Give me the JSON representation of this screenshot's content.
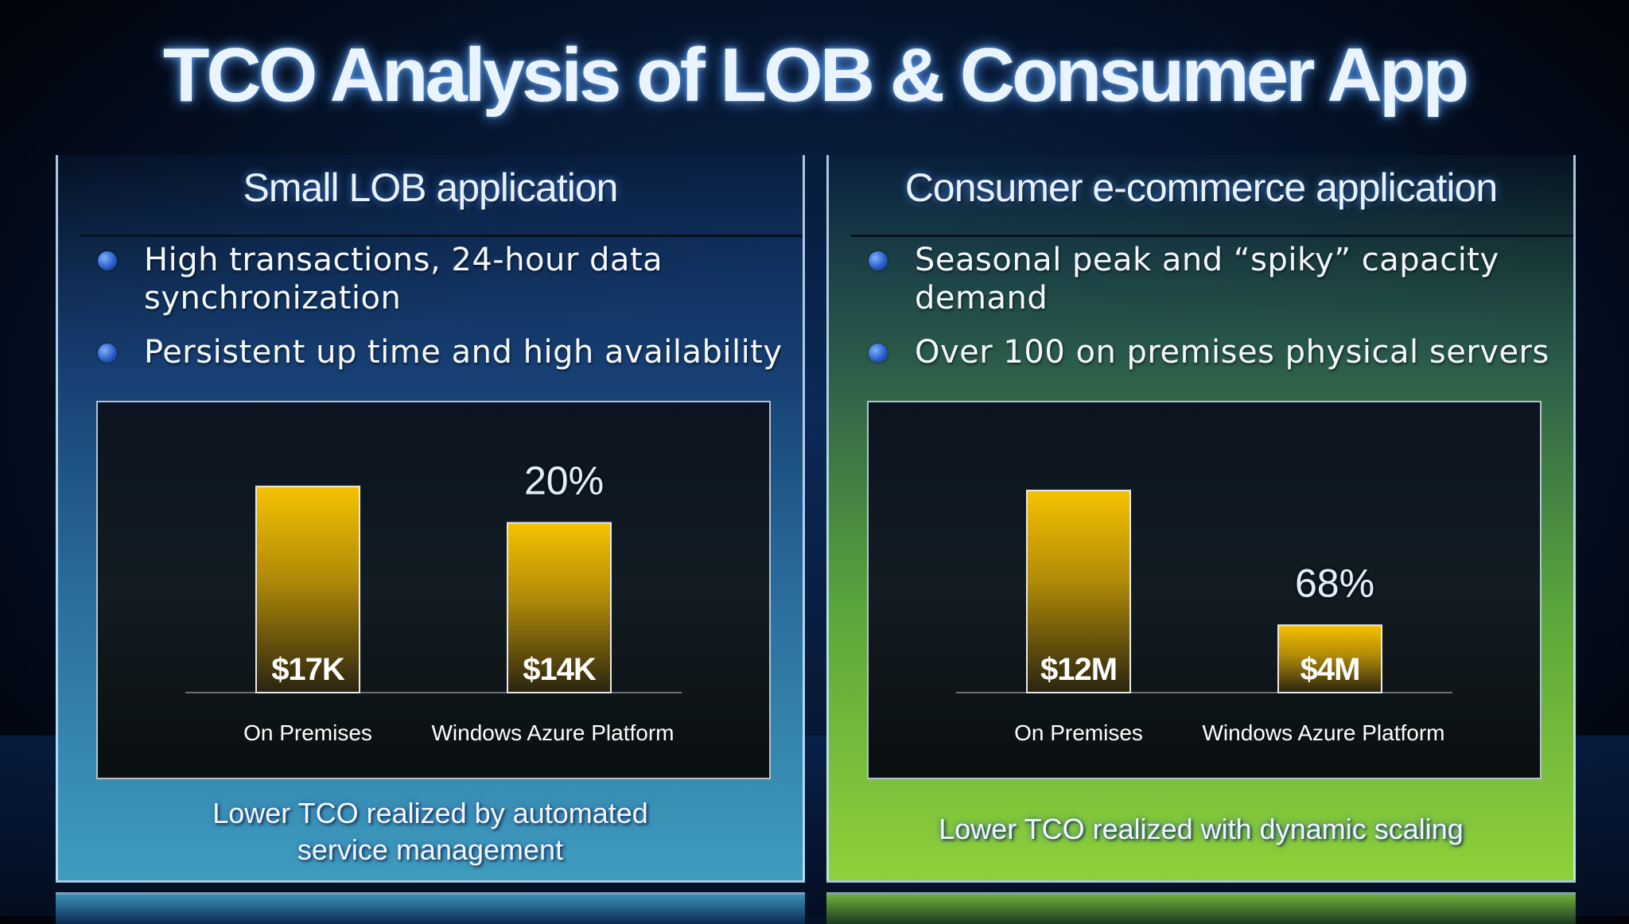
{
  "title": "TCO Analysis of LOB & Consumer App",
  "panels": {
    "left": {
      "heading": "Small LOB application",
      "bullets": [
        "High transactions, 24-hour data synchronization",
        "Persistent up time and high availability"
      ],
      "caption_line1": "Lower TCO realized by automated",
      "caption_line2": "service management"
    },
    "right": {
      "heading": "Consumer e-commerce application",
      "bullets": [
        "Seasonal peak and “spiky” capacity demand",
        "Over 100 on premises physical servers"
      ],
      "caption_line1": "Lower TCO realized with dynamic scaling",
      "caption_line2": ""
    }
  },
  "colors": {
    "bar_top": "#f6c200",
    "bar_bottom": "#2a2410",
    "left_panel": "#3f9dbf",
    "right_panel": "#8fd13a"
  },
  "chart_data": [
    {
      "type": "bar",
      "categories": [
        "On Premises",
        "Windows Azure Platform"
      ],
      "values": [
        17,
        14
      ],
      "value_labels": [
        "$17K",
        "$14K"
      ],
      "unit": "$K",
      "annotation": "20%",
      "ylim": [
        0,
        20
      ],
      "grid": false,
      "legend": "none"
    },
    {
      "type": "bar",
      "categories": [
        "On Premises",
        "Windows Azure Platform"
      ],
      "values": [
        12,
        4
      ],
      "value_labels": [
        "$12M",
        "$4M"
      ],
      "unit": "$M",
      "annotation": "68%",
      "ylim": [
        0,
        14.4
      ],
      "grid": false,
      "legend": "none"
    }
  ]
}
